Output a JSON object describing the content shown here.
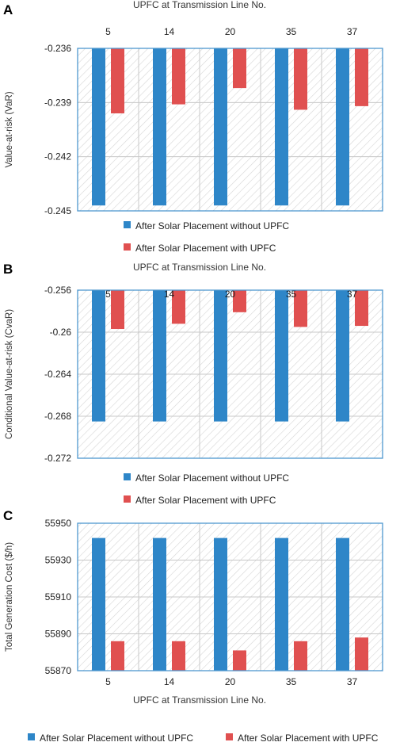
{
  "colors": {
    "without": "#2e86c8",
    "with": "#e05050",
    "frame": "#4e97cf",
    "grid": "#c8c8c8",
    "hatch": "#d6d6d6"
  },
  "chart_data": [
    {
      "panel": "A",
      "type": "bar",
      "xlabel": "UPFC at Transmission Line No.",
      "ylabel": "Value-at-risk (VaR)",
      "categories": [
        "5",
        "14",
        "20",
        "35",
        "37"
      ],
      "ylim": [
        -0.245,
        -0.236
      ],
      "yticks": [
        -0.236,
        -0.239,
        -0.242,
        -0.245
      ],
      "ytick_labels": [
        "-0.236",
        "-0.239",
        "-0.242",
        "-0.245"
      ],
      "inverted_axis": true,
      "x_axis_position": "top",
      "legend_placement": "bottom-stacked",
      "grid": true,
      "series": [
        {
          "name": "After Solar Placement without UPFC",
          "values": [
            -0.2447,
            -0.2447,
            -0.2447,
            -0.2447,
            -0.2447
          ]
        },
        {
          "name": "After Solar Placement with UPFC",
          "values": [
            -0.2396,
            -0.2391,
            -0.2382,
            -0.2394,
            -0.2392
          ]
        }
      ]
    },
    {
      "panel": "B",
      "type": "bar",
      "xlabel": "UPFC at Transmission Line No.",
      "ylabel": "Conditional Value-at-risk (CvaR)",
      "categories": [
        "5",
        "14",
        "20",
        "35",
        "37"
      ],
      "ylim": [
        -0.272,
        -0.256
      ],
      "yticks": [
        -0.256,
        -0.26,
        -0.264,
        -0.268,
        -0.272
      ],
      "ytick_labels": [
        "-0.256",
        "-0.26",
        "-0.264",
        "-0.268",
        "-0.272"
      ],
      "inverted_axis": true,
      "x_axis_position": "top",
      "legend_placement": "bottom-stacked",
      "grid": true,
      "series": [
        {
          "name": "After Solar Placement without UPFC",
          "values": [
            -0.2685,
            -0.2685,
            -0.2685,
            -0.2685,
            -0.2685
          ]
        },
        {
          "name": "After Solar Placement with UPFC",
          "values": [
            -0.2597,
            -0.2592,
            -0.2581,
            -0.2595,
            -0.2594
          ]
        }
      ]
    },
    {
      "panel": "C",
      "type": "bar",
      "xlabel": "UPFC at Transmission Line No.",
      "ylabel": "Total Generation Cost ($/h)",
      "categories": [
        "5",
        "14",
        "20",
        "35",
        "37"
      ],
      "ylim": [
        55870,
        55950
      ],
      "yticks": [
        55870,
        55890,
        55910,
        55930,
        55950
      ],
      "ytick_labels": [
        "55870",
        "55890",
        "55910",
        "55930",
        "55950"
      ],
      "inverted_axis": false,
      "x_axis_position": "bottom",
      "legend_placement": "bottom-inline",
      "grid": true,
      "series": [
        {
          "name": "After Solar Placement without UPFC",
          "values": [
            55942,
            55942,
            55942,
            55942,
            55942
          ]
        },
        {
          "name": "After Solar Placement with UPFC",
          "values": [
            55886,
            55886,
            55881,
            55886,
            55888
          ]
        }
      ]
    }
  ]
}
